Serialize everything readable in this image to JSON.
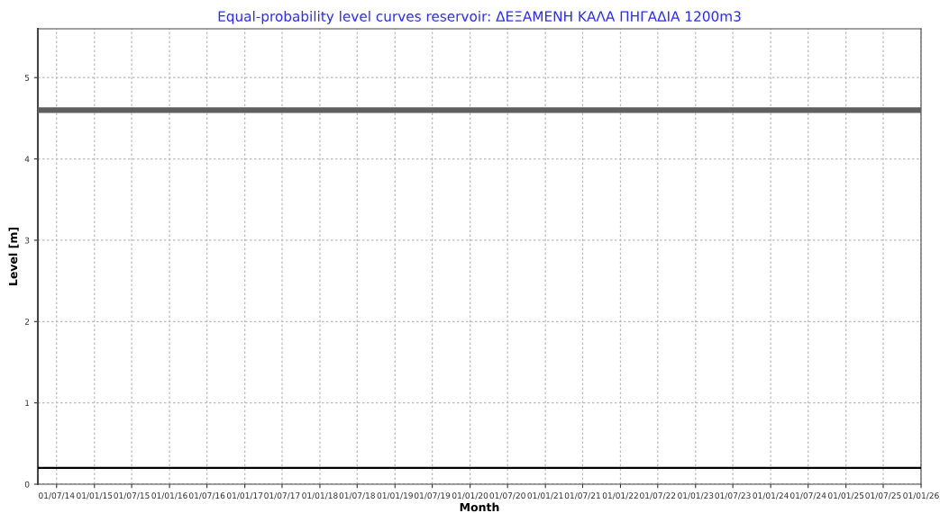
{
  "chart_data": {
    "type": "line",
    "title": "Equal-probability level curves reservoir: ΔΕΞΑΜΕΝΗ ΚΑΛΑ ΠΗΓΑΔΙΑ 1200m3",
    "xlabel": "Month",
    "ylabel": "Level [m]",
    "series": [
      {
        "color": "#5f5f5f",
        "x": [
          "2014-04-01",
          "2026-01-01"
        ],
        "values": [
          4.6,
          4.6
        ]
      },
      {
        "color": "#000000",
        "x": [
          "2014-04-01",
          "2026-01-01"
        ],
        "values": [
          0.2,
          0.2
        ]
      }
    ],
    "xlim": [
      "2014-04-01",
      "2026-01-01"
    ],
    "xticks": [
      {
        "value": "2014-07-01",
        "label": "01/07/14"
      },
      {
        "value": "2015-01-01",
        "label": "01/01/15"
      },
      {
        "value": "2015-07-01",
        "label": "01/07/15"
      },
      {
        "value": "2016-01-01",
        "label": "01/01/16"
      },
      {
        "value": "2016-07-01",
        "label": "01/07/16"
      },
      {
        "value": "2017-01-01",
        "label": "01/01/17"
      },
      {
        "value": "2017-07-01",
        "label": "01/07/17"
      },
      {
        "value": "2018-01-01",
        "label": "01/01/18"
      },
      {
        "value": "2018-07-01",
        "label": "01/07/18"
      },
      {
        "value": "2019-01-01",
        "label": "01/01/19"
      },
      {
        "value": "2019-07-01",
        "label": "01/07/19"
      },
      {
        "value": "2020-01-01",
        "label": "01/01/20"
      },
      {
        "value": "2020-07-01",
        "label": "01/07/20"
      },
      {
        "value": "2021-01-01",
        "label": "01/01/21"
      },
      {
        "value": "2021-07-01",
        "label": "01/07/21"
      },
      {
        "value": "2022-01-01",
        "label": "01/01/22"
      },
      {
        "value": "2022-07-01",
        "label": "01/07/22"
      },
      {
        "value": "2023-01-01",
        "label": "01/01/23"
      },
      {
        "value": "2023-07-01",
        "label": "01/07/23"
      },
      {
        "value": "2024-01-01",
        "label": "01/01/24"
      },
      {
        "value": "2024-07-01",
        "label": "01/07/24"
      },
      {
        "value": "2025-01-01",
        "label": "01/01/25"
      },
      {
        "value": "2025-07-01",
        "label": "01/07/25"
      },
      {
        "value": "2026-01-01",
        "label": "01/01/26"
      }
    ],
    "ylim": [
      0,
      5.6
    ],
    "yticks": [
      0,
      1,
      2,
      3,
      4,
      5
    ],
    "grid": true,
    "line_style": "solid",
    "marker": "none"
  }
}
